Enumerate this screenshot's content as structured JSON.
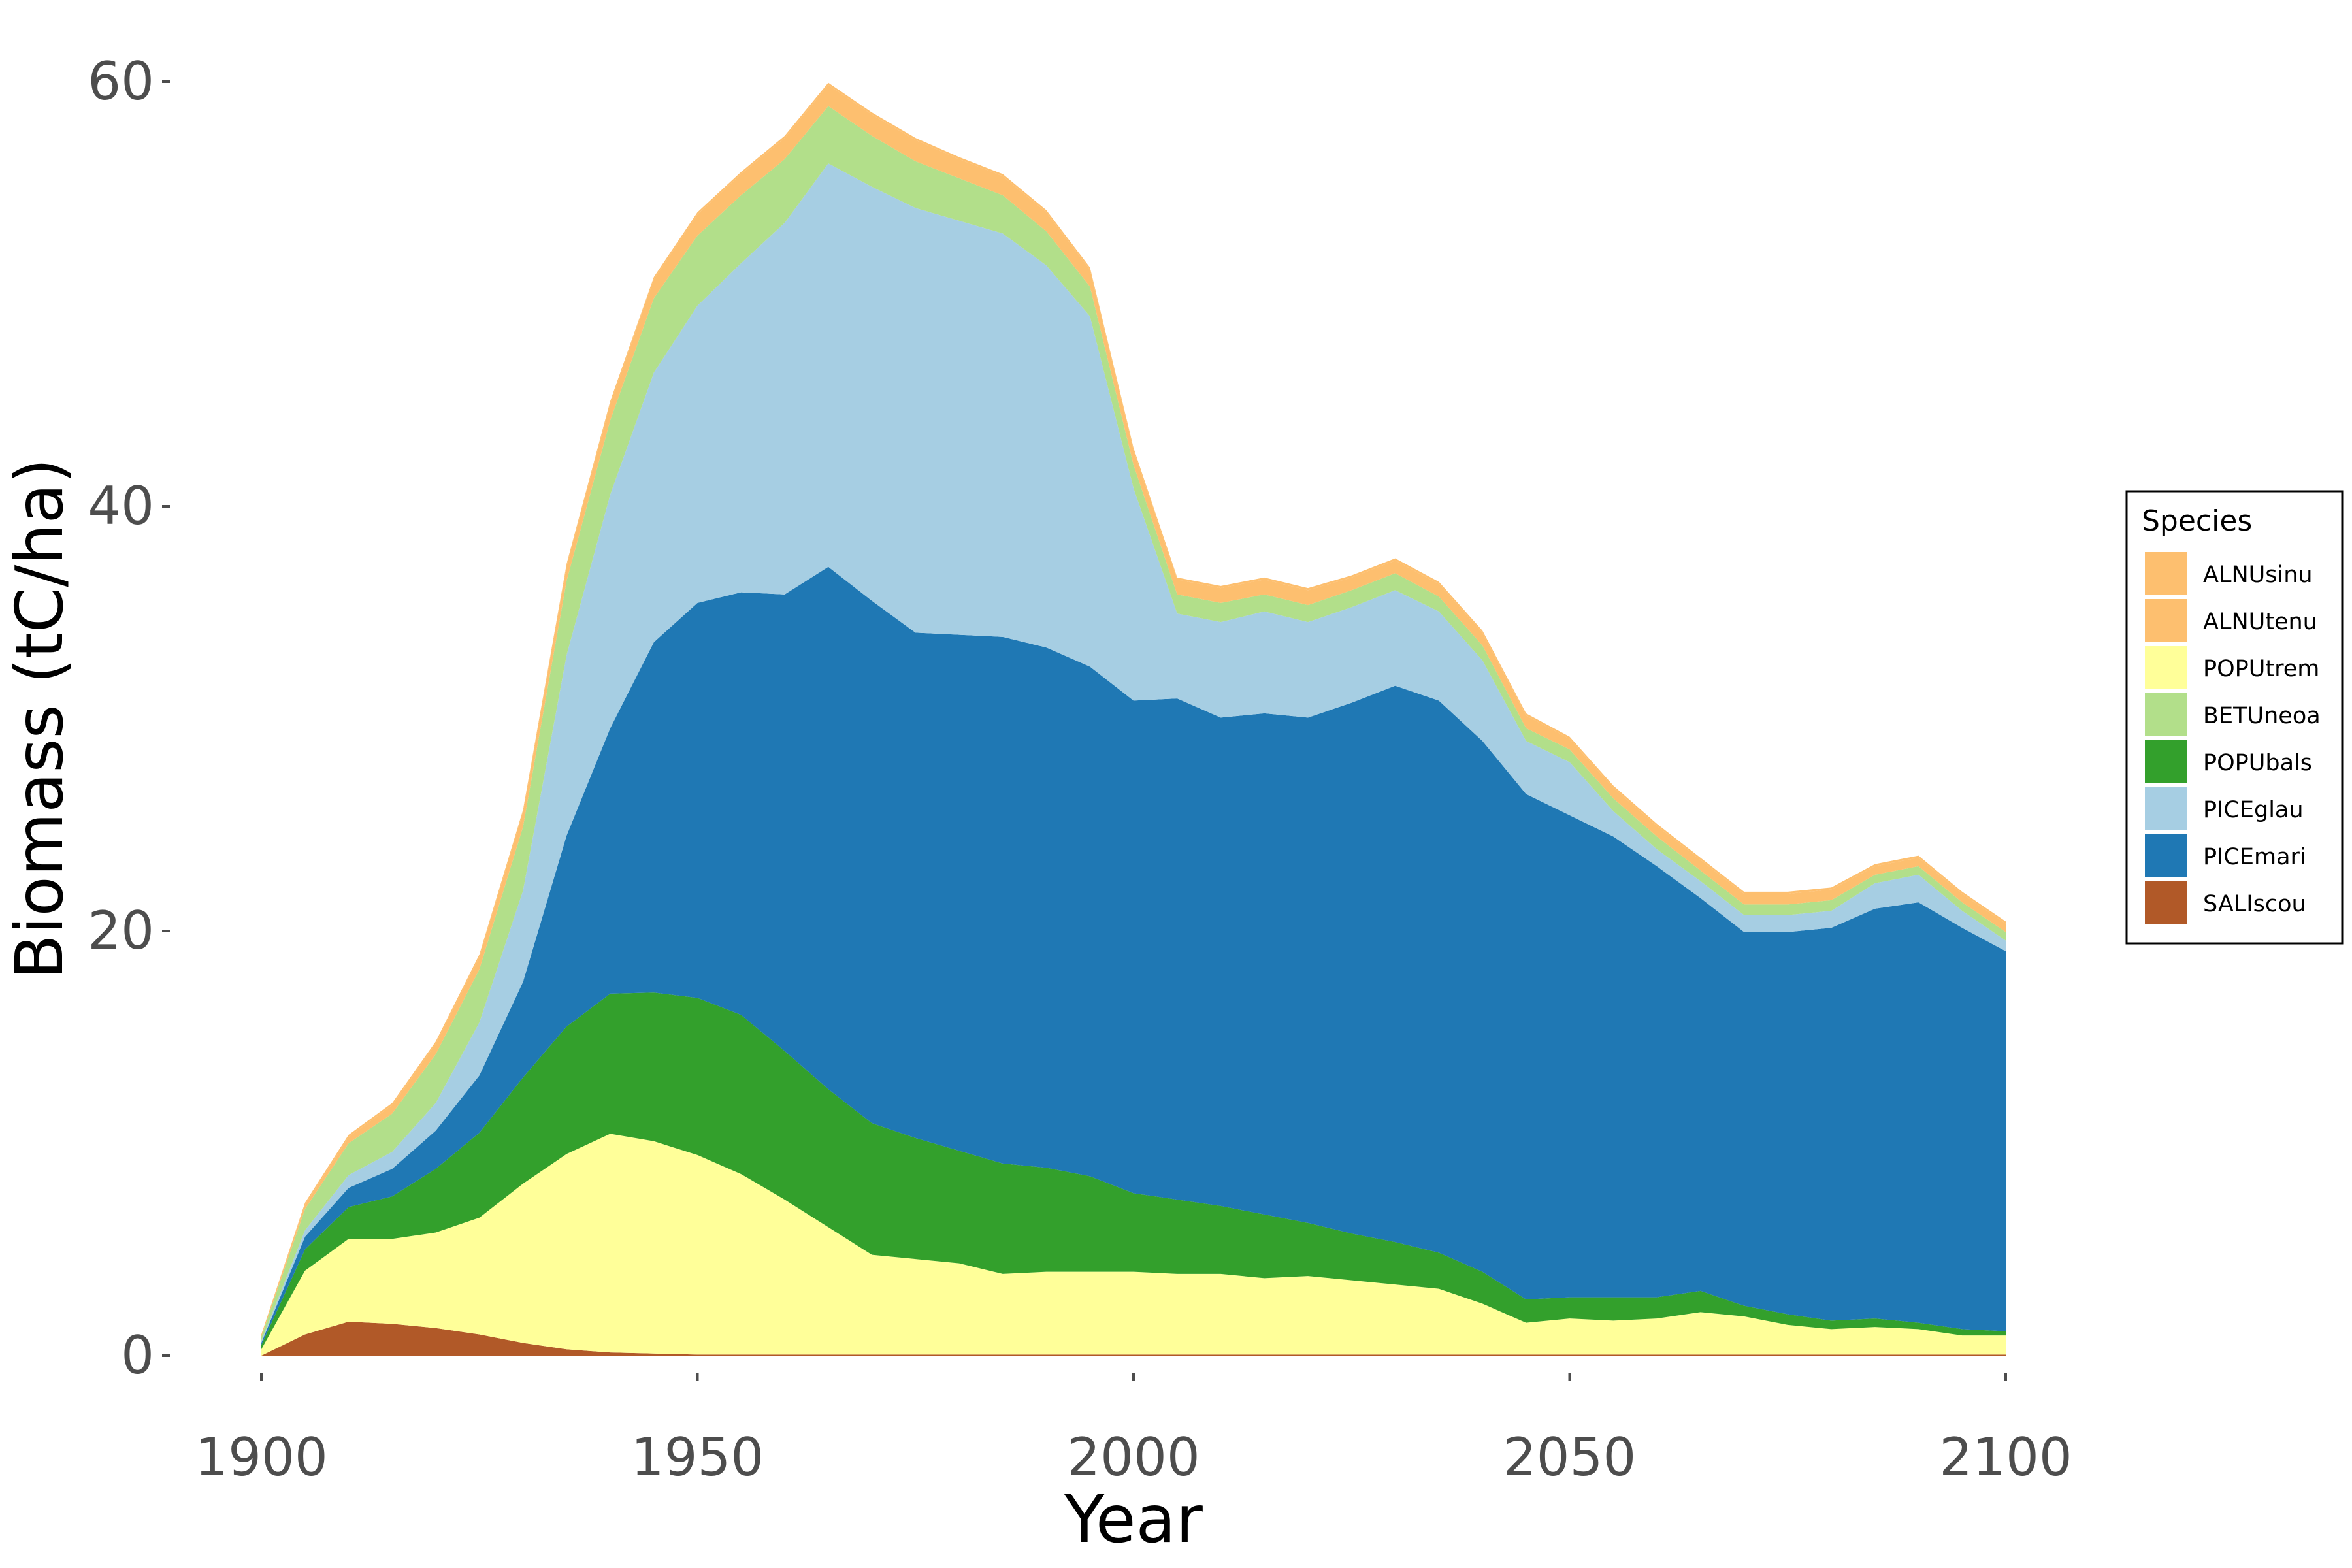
{
  "chart_data": {
    "type": "area",
    "stacked": true,
    "xlabel": "Year",
    "ylabel": "Biomass (tC/ha)",
    "xlim": [
      1900,
      2100
    ],
    "ylim": [
      0,
      62
    ],
    "x_ticks": [
      1900,
      1950,
      2000,
      2050,
      2100
    ],
    "y_ticks": [
      0,
      20,
      40,
      60
    ],
    "grid": false,
    "legend": {
      "title": "Species",
      "position": "right",
      "entries": [
        "ALNUsinu",
        "ALNUtenu",
        "POPUtrem",
        "BETUneoa",
        "POPUbals",
        "PICEglau",
        "PICEmari",
        "SALIscou"
      ]
    },
    "x": [
      1900,
      1905,
      1910,
      1915,
      1920,
      1925,
      1930,
      1935,
      1940,
      1945,
      1950,
      1955,
      1960,
      1965,
      1970,
      1975,
      1980,
      1985,
      1990,
      1995,
      2000,
      2005,
      2010,
      2015,
      2020,
      2025,
      2030,
      2035,
      2040,
      2045,
      2050,
      2055,
      2060,
      2065,
      2070,
      2075,
      2080,
      2085,
      2090,
      2095,
      2100
    ],
    "stack_order_bottom_to_top": [
      "SALIscou",
      "POPUtrem",
      "POPUbals",
      "PICEmari",
      "PICEglau",
      "BETUneoa",
      "ALNUtenu",
      "ALNUsinu"
    ],
    "series": [
      {
        "name": "SALIscou",
        "color": "#B15928",
        "values": [
          0.0,
          1.0,
          1.6,
          1.5,
          1.3,
          1.0,
          0.6,
          0.3,
          0.15,
          0.1,
          0.05,
          0.05,
          0.05,
          0.05,
          0.05,
          0.05,
          0.05,
          0.05,
          0.05,
          0.05,
          0.05,
          0.05,
          0.05,
          0.05,
          0.05,
          0.05,
          0.05,
          0.05,
          0.05,
          0.05,
          0.05,
          0.05,
          0.05,
          0.05,
          0.05,
          0.05,
          0.05,
          0.05,
          0.05,
          0.05,
          0.05
        ]
      },
      {
        "name": "POPUtrem",
        "color": "#FFFF99",
        "values": [
          0.3,
          3.0,
          3.9,
          4.0,
          4.5,
          5.5,
          7.5,
          9.2,
          10.3,
          10.0,
          9.4,
          8.5,
          7.3,
          6.0,
          4.7,
          4.5,
          4.3,
          3.8,
          3.9,
          3.9,
          3.9,
          3.8,
          3.8,
          3.6,
          3.7,
          3.5,
          3.3,
          3.1,
          2.4,
          1.5,
          1.7,
          1.6,
          1.7,
          2.0,
          1.8,
          1.4,
          1.2,
          1.3,
          1.2,
          0.9,
          0.9
        ]
      },
      {
        "name": "POPUbals",
        "color": "#33A02C",
        "values": [
          0.2,
          1.0,
          1.5,
          2.0,
          3.0,
          4.0,
          5.0,
          6.0,
          6.6,
          7.0,
          7.4,
          7.5,
          7.0,
          6.5,
          6.2,
          5.7,
          5.3,
          5.2,
          4.9,
          4.5,
          3.7,
          3.5,
          3.2,
          3.0,
          2.5,
          2.2,
          2.0,
          1.7,
          1.5,
          1.1,
          1.0,
          1.1,
          1.0,
          1.0,
          0.5,
          0.5,
          0.4,
          0.4,
          0.3,
          0.3,
          0.2
        ]
      },
      {
        "name": "PICEmari",
        "color": "#1F78B4",
        "values": [
          0.1,
          0.6,
          0.9,
          1.3,
          1.8,
          2.7,
          4.5,
          9.0,
          12.5,
          16.5,
          18.6,
          19.9,
          21.5,
          24.6,
          24.6,
          23.8,
          24.3,
          24.8,
          24.5,
          24.0,
          23.2,
          23.6,
          23.0,
          23.6,
          23.8,
          25.0,
          26.2,
          26.0,
          25.0,
          23.8,
          22.7,
          21.7,
          20.3,
          18.5,
          17.6,
          18.0,
          18.5,
          19.3,
          19.8,
          18.9,
          17.9
        ]
      },
      {
        "name": "PICEglau",
        "color": "#A6CEE3",
        "values": [
          0.1,
          0.3,
          0.6,
          0.8,
          1.3,
          2.5,
          4.3,
          8.5,
          11.0,
          12.7,
          14.0,
          15.5,
          17.5,
          19.0,
          19.5,
          20.0,
          19.5,
          19.0,
          18.0,
          16.5,
          10.0,
          4.0,
          4.5,
          4.8,
          4.5,
          4.5,
          4.5,
          4.2,
          3.8,
          2.5,
          2.5,
          1.2,
          0.8,
          0.8,
          0.8,
          0.8,
          0.8,
          1.2,
          1.3,
          0.8,
          0.5
        ]
      },
      {
        "name": "BETUneoa",
        "color": "#B2DF8A",
        "values": [
          0.2,
          1.0,
          1.5,
          1.8,
          2.3,
          2.5,
          3.0,
          3.5,
          3.5,
          3.5,
          3.3,
          3.2,
          3.0,
          2.7,
          2.4,
          2.2,
          2.0,
          1.8,
          1.6,
          1.4,
          1.1,
          0.9,
          0.9,
          0.8,
          0.8,
          0.8,
          0.8,
          0.7,
          0.7,
          0.6,
          0.6,
          0.6,
          0.6,
          0.5,
          0.5,
          0.5,
          0.5,
          0.4,
          0.4,
          0.4,
          0.4
        ]
      },
      {
        "name": "ALNUtenu",
        "color": "#FDBF6F",
        "values": [
          0.1,
          0.2,
          0.3,
          0.4,
          0.5,
          0.6,
          0.7,
          0.7,
          0.8,
          0.9,
          1.0,
          1.0,
          1.0,
          1.0,
          1.0,
          1.0,
          0.9,
          0.9,
          0.9,
          0.8,
          0.7,
          0.7,
          0.7,
          0.7,
          0.7,
          0.6,
          0.6,
          0.6,
          0.6,
          0.6,
          0.5,
          0.5,
          0.5,
          0.5,
          0.5,
          0.5,
          0.5,
          0.4,
          0.4,
          0.4,
          0.4
        ]
      },
      {
        "name": "ALNUsinu",
        "color": "#FDBF6F",
        "values": [
          0.0,
          0.1,
          0.1,
          0.1,
          0.1,
          0.1,
          0.1,
          0.1,
          0.1,
          0.1,
          0.1,
          0.1,
          0.1,
          0.1,
          0.1,
          0.1,
          0.1,
          0.1,
          0.1,
          0.1,
          0.1,
          0.1,
          0.1,
          0.1,
          0.1,
          0.1,
          0.1,
          0.1,
          0.1,
          0.1,
          0.1,
          0.1,
          0.1,
          0.1,
          0.1,
          0.1,
          0.1,
          0.1,
          0.1,
          0.1,
          0.1
        ]
      }
    ]
  }
}
